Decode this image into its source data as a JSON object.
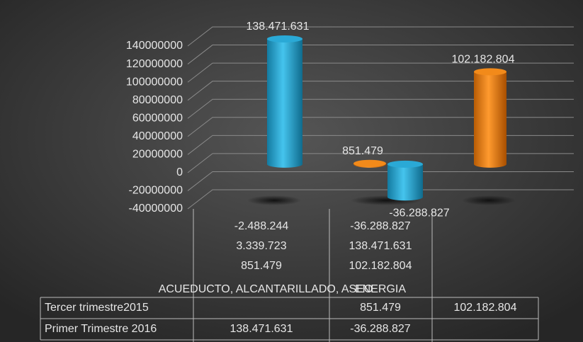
{
  "chart_data": {
    "type": "bar",
    "categories": [
      [
        "-2.488.244",
        "3.339.723",
        "851.479",
        "ACUEDUCTO, ALCANTARILLADO, ASEO"
      ],
      [
        "-36.288.827",
        "138.471.631",
        "102.182.804",
        "ENERGIA"
      ],
      null
    ],
    "series": [
      {
        "name": "Tercer trimestre2015",
        "color": "#f28a1a",
        "values": [
          null,
          851479,
          102182804
        ],
        "value_labels": [
          null,
          "851.479",
          "102.182.804"
        ]
      },
      {
        "name": "Primer Trimestre 2016",
        "color": "#2aa9d6",
        "values": [
          138471631,
          -36288827,
          null
        ],
        "value_labels": [
          "138.471.631",
          "-36.288.827",
          null
        ]
      }
    ],
    "ylim": [
      -40000000,
      140000000
    ],
    "yticks": [
      -40000000,
      -20000000,
      0,
      20000000,
      40000000,
      60000000,
      80000000,
      100000000,
      120000000,
      140000000
    ],
    "grid": true
  }
}
